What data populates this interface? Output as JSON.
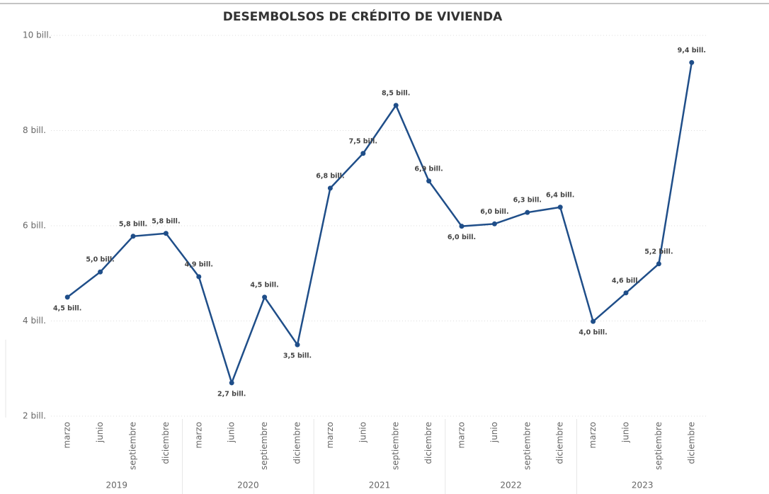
{
  "chart_data": {
    "type": "line",
    "title": "DESEMBOLSOS DE CRÉDITO DE VIVIENDA",
    "categories": [
      "marzo",
      "junio",
      "septiembre",
      "diciembre",
      "marzo",
      "junio",
      "septiembre",
      "diciembre",
      "marzo",
      "junio",
      "septiembre",
      "diciembre",
      "marzo",
      "junio",
      "septiembre",
      "diciembre",
      "marzo",
      "junio",
      "septiembre",
      "diciembre"
    ],
    "x_groups": [
      "2019",
      "2020",
      "2021",
      "2022",
      "2023"
    ],
    "series": [
      {
        "name": "Desembolsos",
        "color": "#1f4e89",
        "values": [
          4.5,
          5.03,
          5.78,
          5.84,
          4.93,
          2.7,
          4.5,
          3.5,
          6.79,
          7.52,
          8.53,
          6.94,
          5.99,
          6.04,
          6.28,
          6.39,
          3.99,
          4.59,
          5.2,
          9.43
        ],
        "value_labels": [
          "4,5 bill.",
          "5,0 bill.",
          "5,8 bill.",
          "5,8 bill.",
          "4,9 bill.",
          "2,7 bill.",
          "4,5 bill.",
          "3,5 bill.",
          "6,8 bill.",
          "7,5 bill.",
          "8,5 bill.",
          "6,9 bill.",
          "6,0 bill.",
          "6,0 bill.",
          "6,3 bill.",
          "6,4 bill.",
          "4,0 bill.",
          "4,6 bill.",
          "5,2 bill.",
          "9,4 bill."
        ]
      }
    ],
    "ylim": [
      2,
      10
    ],
    "yticks": [
      {
        "value": 2,
        "label": "2 bill."
      },
      {
        "value": 4,
        "label": "4 bill."
      },
      {
        "value": 6,
        "label": "6 bill."
      },
      {
        "value": 8,
        "label": "8 bill."
      },
      {
        "value": 10,
        "label": "10 bill."
      }
    ],
    "grid": true
  }
}
